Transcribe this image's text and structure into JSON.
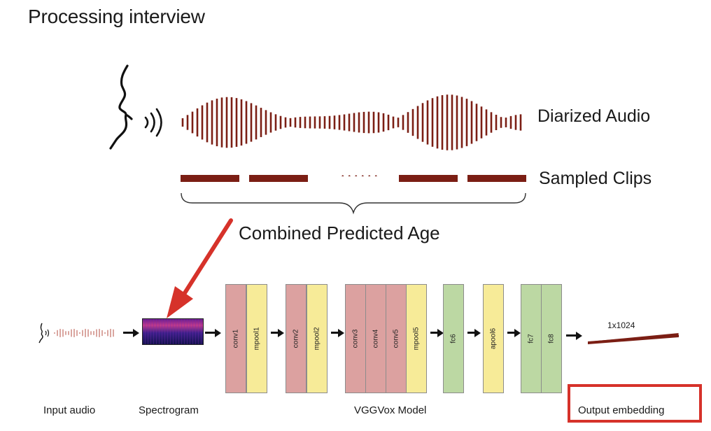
{
  "title": "Processing interview",
  "top_labels": {
    "diarized_audio": "Diarized Audio",
    "sampled_clips": "Sampled Clips",
    "combined": "Combined Predicted Age"
  },
  "layers": [
    {
      "id": "conv1",
      "label": "conv1",
      "kind": "conv"
    },
    {
      "id": "mpool1",
      "label": "mpool1",
      "kind": "pool"
    },
    {
      "id": "conv2",
      "label": "conv2",
      "kind": "conv"
    },
    {
      "id": "mpool2",
      "label": "mpool2",
      "kind": "pool"
    },
    {
      "id": "conv3",
      "label": "conv3",
      "kind": "conv"
    },
    {
      "id": "conv4",
      "label": "conv4",
      "kind": "conv"
    },
    {
      "id": "conv5",
      "label": "conv5",
      "kind": "conv"
    },
    {
      "id": "mpool5",
      "label": "mpool5",
      "kind": "pool"
    },
    {
      "id": "fc6",
      "label": "fc6",
      "kind": "fc"
    },
    {
      "id": "apool6",
      "label": "apool6",
      "kind": "pool"
    },
    {
      "id": "fc7",
      "label": "fc7",
      "kind": "fc"
    },
    {
      "id": "fc8",
      "label": "fc8",
      "kind": "fc"
    }
  ],
  "embedding_dim": "1x1024",
  "bottom_labels": {
    "input_audio": "Input audio",
    "spectrogram": "Spectrogram",
    "model": "VGGVox Model",
    "output": "Output embedding"
  },
  "colors": {
    "waveform": "#7b1e14",
    "highlight": "#d6322a",
    "conv": "#dca1a0",
    "pool": "#f7eb98",
    "fc": "#bcd8a3"
  },
  "icons": [
    "speaking-head-icon",
    "sound-waves-icon"
  ]
}
